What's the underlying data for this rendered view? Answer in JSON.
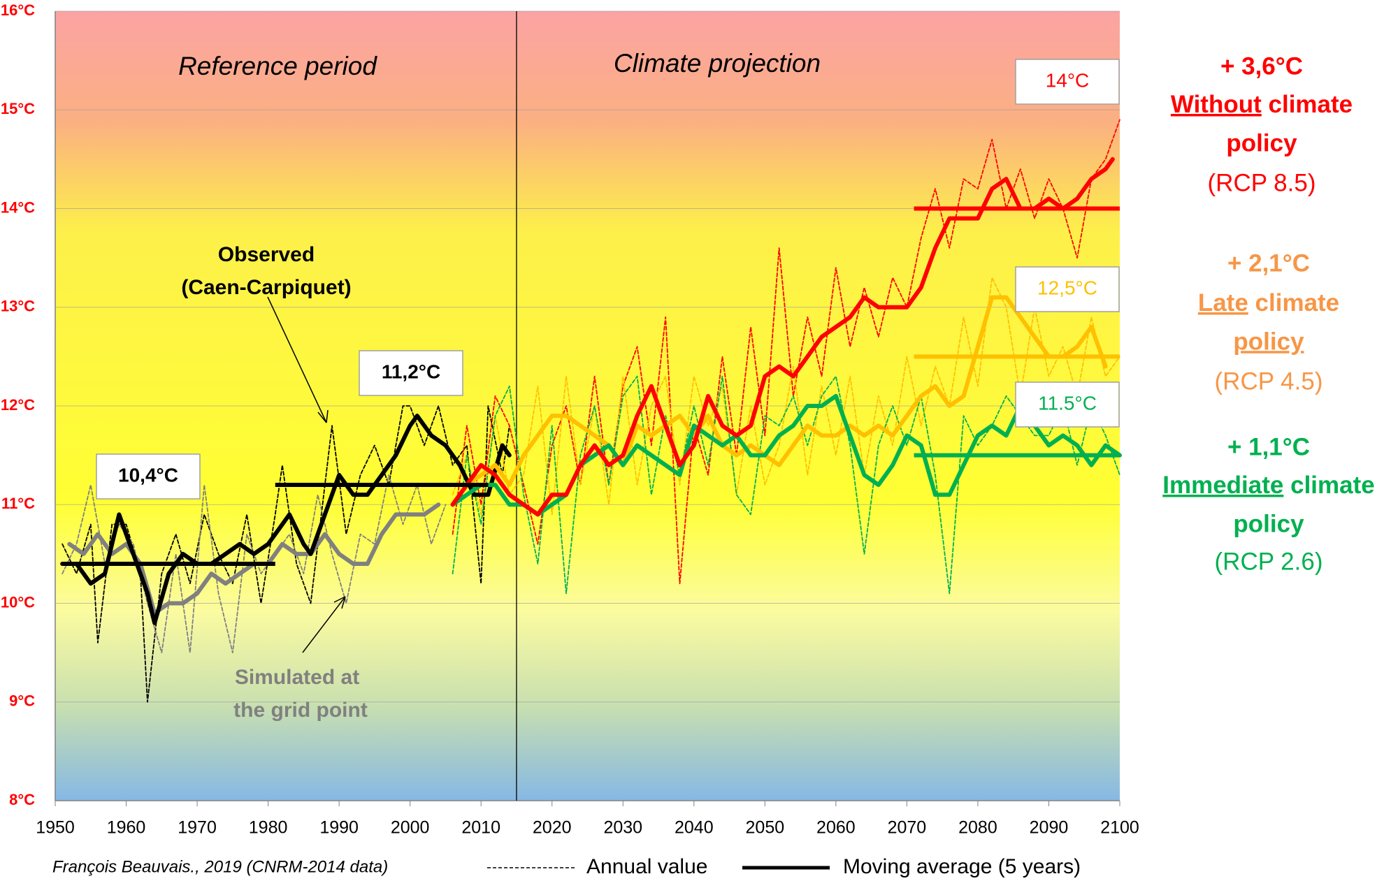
{
  "chart_data": {
    "type": "line",
    "xlim": [
      1950,
      2100
    ],
    "xticks": [
      1950,
      1960,
      1970,
      1980,
      1990,
      2000,
      2010,
      2020,
      2030,
      2040,
      2050,
      2060,
      2070,
      2080,
      2090,
      2100
    ],
    "ylim": [
      8,
      16
    ],
    "yticks": [
      {
        "value": 8,
        "label": "8°C"
      },
      {
        "value": 9,
        "label": "9°C"
      },
      {
        "value": 10,
        "label": "10°C"
      },
      {
        "value": 11,
        "label": "11°C"
      },
      {
        "value": 12,
        "label": "12°C"
      },
      {
        "value": 13,
        "label": "13°C"
      },
      {
        "value": 14,
        "label": "14°C"
      },
      {
        "value": 15,
        "label": "15°C"
      },
      {
        "value": 16,
        "label": "16°C"
      }
    ],
    "grid": true,
    "divider_x": 2015,
    "periods": [
      "Reference period",
      "Climate projection"
    ],
    "series": [
      {
        "color": "#000000",
        "dashed": true,
        "x": [
          1951,
          1953,
          1955,
          1956,
          1958,
          1960,
          1962,
          1963,
          1965,
          1967,
          1969,
          1971,
          1973,
          1975,
          1977,
          1979,
          1981,
          1982,
          1984,
          1986,
          1988,
          1989,
          1991,
          1993,
          1995,
          1997,
          1999,
          2000,
          2002,
          2004,
          2006,
          2008,
          2010,
          2011,
          2013,
          2014
        ],
        "values": [
          10.6,
          10.3,
          10.8,
          9.6,
          10.8,
          10.8,
          10.3,
          9.0,
          10.3,
          10.7,
          10.2,
          10.9,
          10.5,
          10.2,
          10.9,
          10.0,
          10.9,
          11.4,
          10.4,
          10.0,
          11.2,
          11.8,
          10.7,
          11.3,
          11.6,
          11.2,
          12.0,
          12.0,
          11.6,
          12.0,
          11.4,
          11.6,
          10.2,
          12.0,
          11.3,
          11.8
        ]
      },
      {
        "color": "#808080",
        "dashed": true,
        "x": [
          1951,
          1953,
          1955,
          1957,
          1959,
          1961,
          1963,
          1965,
          1967,
          1969,
          1971,
          1973,
          1975,
          1977,
          1979,
          1981,
          1983,
          1985,
          1987,
          1989,
          1991,
          1993,
          1995,
          1997,
          1999,
          2001,
          2003,
          2005
        ],
        "values": [
          10.3,
          10.6,
          11.2,
          10.4,
          10.8,
          10.6,
          10.0,
          9.5,
          10.5,
          9.5,
          11.2,
          10.1,
          9.5,
          10.7,
          10.3,
          10.5,
          10.7,
          10.3,
          11.1,
          10.5,
          10.0,
          10.7,
          10.6,
          11.3,
          10.8,
          11.2,
          10.6,
          11.0
        ]
      },
      {
        "color": "#ff0000",
        "dashed": true,
        "x": [
          2006,
          2008,
          2010,
          2012,
          2014,
          2016,
          2018,
          2020,
          2022,
          2024,
          2026,
          2028,
          2030,
          2032,
          2034,
          2036,
          2038,
          2040,
          2042,
          2044,
          2046,
          2048,
          2050,
          2052,
          2054,
          2056,
          2058,
          2060,
          2062,
          2064,
          2066,
          2068,
          2070,
          2072,
          2074,
          2076,
          2078,
          2080,
          2082,
          2084,
          2086,
          2088,
          2090,
          2092,
          2094,
          2096,
          2098,
          2100
        ],
        "values": [
          10.7,
          11.8,
          11.0,
          12.1,
          11.8,
          11.2,
          10.6,
          11.6,
          12.0,
          11.2,
          12.3,
          11.2,
          12.2,
          12.6,
          11.6,
          12.9,
          10.2,
          11.8,
          11.3,
          12.5,
          11.5,
          12.8,
          11.7,
          13.6,
          12.1,
          12.9,
          12.3,
          13.4,
          12.6,
          13.2,
          12.7,
          13.3,
          13.0,
          13.7,
          14.2,
          13.6,
          14.3,
          14.2,
          14.7,
          14.0,
          14.4,
          13.9,
          14.3,
          14.0,
          13.5,
          14.3,
          14.5,
          14.9
        ]
      },
      {
        "color": "#ffc000",
        "dashed": true,
        "x": [
          2006,
          2008,
          2010,
          2012,
          2014,
          2016,
          2018,
          2020,
          2022,
          2024,
          2026,
          2028,
          2030,
          2032,
          2034,
          2036,
          2038,
          2040,
          2042,
          2044,
          2046,
          2048,
          2050,
          2052,
          2054,
          2056,
          2058,
          2060,
          2062,
          2064,
          2066,
          2068,
          2070,
          2072,
          2074,
          2076,
          2078,
          2080,
          2082,
          2084,
          2086,
          2088,
          2090,
          2092,
          2094,
          2096,
          2098,
          2100
        ],
        "values": [
          11.1,
          11.5,
          10.9,
          11.9,
          11.1,
          11.3,
          12.2,
          10.9,
          12.3,
          11.2,
          12.0,
          11.0,
          12.3,
          11.2,
          12.0,
          12.3,
          11.2,
          12.3,
          11.8,
          12.2,
          11.1,
          12.0,
          11.2,
          11.6,
          12.4,
          11.3,
          12.2,
          11.5,
          12.3,
          11.3,
          12.1,
          11.6,
          12.5,
          11.8,
          12.4,
          12.0,
          12.9,
          12.2,
          13.3,
          13.0,
          12.1,
          13.0,
          12.3,
          12.6,
          12.1,
          12.9,
          12.3,
          12.5
        ]
      },
      {
        "color": "#00b050",
        "dashed": true,
        "x": [
          2006,
          2008,
          2010,
          2012,
          2014,
          2016,
          2018,
          2020,
          2022,
          2024,
          2026,
          2028,
          2030,
          2032,
          2034,
          2036,
          2038,
          2040,
          2042,
          2044,
          2046,
          2048,
          2050,
          2052,
          2054,
          2056,
          2058,
          2060,
          2062,
          2064,
          2066,
          2068,
          2070,
          2072,
          2074,
          2076,
          2078,
          2080,
          2082,
          2084,
          2086,
          2088,
          2090,
          2092,
          2094,
          2096,
          2098,
          2100
        ],
        "values": [
          10.3,
          11.5,
          10.8,
          11.9,
          12.2,
          11.1,
          10.4,
          11.8,
          10.1,
          11.5,
          12.0,
          11.2,
          12.1,
          12.3,
          11.1,
          11.9,
          11.3,
          12.0,
          11.4,
          12.3,
          11.1,
          10.9,
          11.9,
          11.8,
          12.1,
          11.6,
          12.1,
          12.3,
          11.6,
          10.5,
          11.6,
          12.0,
          11.6,
          12.1,
          11.3,
          10.1,
          11.9,
          11.6,
          11.8,
          12.1,
          11.9,
          11.7,
          11.7,
          12.0,
          11.4,
          12.0,
          11.7,
          11.3
        ]
      },
      {
        "color": "#808080",
        "dashed": false,
        "x": [
          1952,
          1954,
          1956,
          1958,
          1960,
          1962,
          1964,
          1966,
          1968,
          1970,
          1972,
          1974,
          1976,
          1978,
          1980,
          1982,
          1984,
          1986,
          1988,
          1990,
          1992,
          1994,
          1996,
          1998,
          2000,
          2002,
          2004
        ],
        "values": [
          10.6,
          10.5,
          10.7,
          10.5,
          10.6,
          10.4,
          9.9,
          10.0,
          10.0,
          10.1,
          10.3,
          10.2,
          10.3,
          10.4,
          10.4,
          10.6,
          10.5,
          10.5,
          10.7,
          10.5,
          10.4,
          10.4,
          10.7,
          10.9,
          10.9,
          10.9,
          11.0
        ]
      },
      {
        "color": "#000000",
        "dashed": false,
        "x": [
          1951,
          1953,
          1955,
          1957,
          1959,
          1961,
          1963,
          1964,
          1966,
          1968,
          1970,
          1972,
          1974,
          1976,
          1978,
          1980,
          1982,
          1983,
          1985,
          1986,
          1988,
          1990,
          1992,
          1994,
          1996,
          1998,
          2000,
          2001,
          2003,
          2005,
          2007,
          2009,
          2011,
          2013,
          2014
        ],
        "values": [
          10.4,
          10.4,
          10.2,
          10.3,
          10.9,
          10.5,
          10.1,
          9.8,
          10.3,
          10.5,
          10.4,
          10.4,
          10.5,
          10.6,
          10.5,
          10.6,
          10.8,
          10.9,
          10.6,
          10.5,
          10.9,
          11.3,
          11.1,
          11.1,
          11.3,
          11.5,
          11.8,
          11.9,
          11.7,
          11.6,
          11.4,
          11.1,
          11.1,
          11.6,
          11.5
        ]
      },
      {
        "color": "#ffc000",
        "dashed": false,
        "x": [
          2006,
          2008,
          2010,
          2012,
          2014,
          2016,
          2018,
          2020,
          2022,
          2024,
          2026,
          2028,
          2030,
          2032,
          2034,
          2036,
          2038,
          2040,
          2042,
          2044,
          2046,
          2048,
          2050,
          2052,
          2054,
          2056,
          2058,
          2060,
          2062,
          2064,
          2066,
          2068,
          2070,
          2072,
          2074,
          2076,
          2078,
          2080,
          2082,
          2084,
          2086,
          2088,
          2090,
          2092,
          2094,
          2096,
          2098
        ],
        "values": [
          11.0,
          11.2,
          11.3,
          11.4,
          11.2,
          11.5,
          11.7,
          11.9,
          11.9,
          11.8,
          11.7,
          11.6,
          11.4,
          11.8,
          11.7,
          11.8,
          11.9,
          11.7,
          11.9,
          11.6,
          11.5,
          11.6,
          11.5,
          11.4,
          11.6,
          11.8,
          11.7,
          11.7,
          11.8,
          11.7,
          11.8,
          11.7,
          11.9,
          12.1,
          12.2,
          12.0,
          12.1,
          12.6,
          13.1,
          13.1,
          12.9,
          12.7,
          12.5,
          12.5,
          12.6,
          12.8,
          12.4
        ]
      },
      {
        "color": "#00b050",
        "dashed": false,
        "x": [
          2006,
          2008,
          2010,
          2012,
          2014,
          2016,
          2018,
          2020,
          2022,
          2024,
          2026,
          2028,
          2030,
          2032,
          2034,
          2036,
          2038,
          2040,
          2042,
          2044,
          2046,
          2048,
          2050,
          2052,
          2054,
          2056,
          2058,
          2060,
          2062,
          2064,
          2066,
          2068,
          2070,
          2072,
          2074,
          2076,
          2078,
          2080,
          2082,
          2084,
          2086,
          2088,
          2090,
          2092,
          2094,
          2096,
          2098,
          2100
        ],
        "values": [
          11.0,
          11.1,
          11.2,
          11.2,
          11.0,
          11.0,
          10.9,
          11.0,
          11.1,
          11.4,
          11.5,
          11.6,
          11.4,
          11.6,
          11.5,
          11.4,
          11.3,
          11.8,
          11.7,
          11.6,
          11.7,
          11.5,
          11.5,
          11.7,
          11.8,
          12.0,
          12.0,
          12.1,
          11.7,
          11.3,
          11.2,
          11.4,
          11.7,
          11.6,
          11.1,
          11.1,
          11.4,
          11.7,
          11.8,
          11.7,
          12.0,
          11.8,
          11.6,
          11.7,
          11.6,
          11.4,
          11.6,
          11.5
        ]
      },
      {
        "color": "#ff0000",
        "dashed": false,
        "x": [
          2006,
          2008,
          2010,
          2012,
          2014,
          2016,
          2018,
          2020,
          2022,
          2024,
          2026,
          2028,
          2030,
          2032,
          2034,
          2036,
          2038,
          2040,
          2042,
          2044,
          2046,
          2048,
          2050,
          2052,
          2054,
          2056,
          2058,
          2060,
          2062,
          2064,
          2066,
          2068,
          2070,
          2072,
          2074,
          2076,
          2078,
          2080,
          2082,
          2084,
          2086,
          2088,
          2090,
          2092,
          2094,
          2096,
          2098,
          2099
        ],
        "values": [
          11.0,
          11.2,
          11.4,
          11.3,
          11.1,
          11.0,
          10.9,
          11.1,
          11.1,
          11.4,
          11.6,
          11.4,
          11.5,
          11.9,
          12.2,
          11.8,
          11.4,
          11.6,
          12.1,
          11.8,
          11.7,
          11.8,
          12.3,
          12.4,
          12.3,
          12.5,
          12.7,
          12.8,
          12.9,
          13.1,
          13.0,
          13.0,
          13.0,
          13.2,
          13.6,
          13.9,
          13.9,
          13.9,
          14.2,
          14.3,
          14.0,
          14.0,
          14.1,
          14.0,
          14.1,
          14.3,
          14.4,
          14.5
        ]
      }
    ],
    "reference_lines": [
      {
        "x": [
          1951,
          1981
        ],
        "value": 10.4,
        "label": "10,4°C",
        "color": "#000000"
      },
      {
        "x": [
          1981,
          2011
        ],
        "value": 11.2,
        "label": "11,2°C",
        "color": "#000000"
      },
      {
        "x": [
          2071,
          2100
        ],
        "value": 14,
        "label": "14°C",
        "color": "#ff0000"
      },
      {
        "x": [
          2071,
          2100
        ],
        "value": 12.5,
        "label": "12,5°C",
        "color": "#ffc000"
      },
      {
        "x": [
          2071,
          2100
        ],
        "value": 11.5,
        "label": "11.5°C",
        "color": "#00b050"
      }
    ],
    "annotations": {
      "observed": [
        "Observed",
        "(Caen-Carpiquet)"
      ],
      "simulated": [
        "Simulated at",
        "the grid point"
      ]
    },
    "scenarios": [
      {
        "change": "+ 3,6°C",
        "word": "Without",
        "rest": "climate",
        "end": "policy",
        "scenario": "(RCP 8.5)",
        "color": "#ff0000",
        "underline": "word"
      },
      {
        "change": "+ 2,1°C",
        "word": "Late",
        "rest": "climate",
        "end": "policy",
        "scenario": "(RCP 4.5)",
        "color": "#f79646",
        "underline": "both"
      },
      {
        "change": "+ 1,1°C",
        "word": "Immediate",
        "rest": "climate",
        "end": "policy",
        "scenario": "(RCP 2.6)",
        "color": "#00b050",
        "underline": "word"
      }
    ],
    "legend": [
      "Annual value",
      "Moving average (5 years)"
    ],
    "source": "François Beauvais., 2019 (CNRM-2014 data)"
  }
}
